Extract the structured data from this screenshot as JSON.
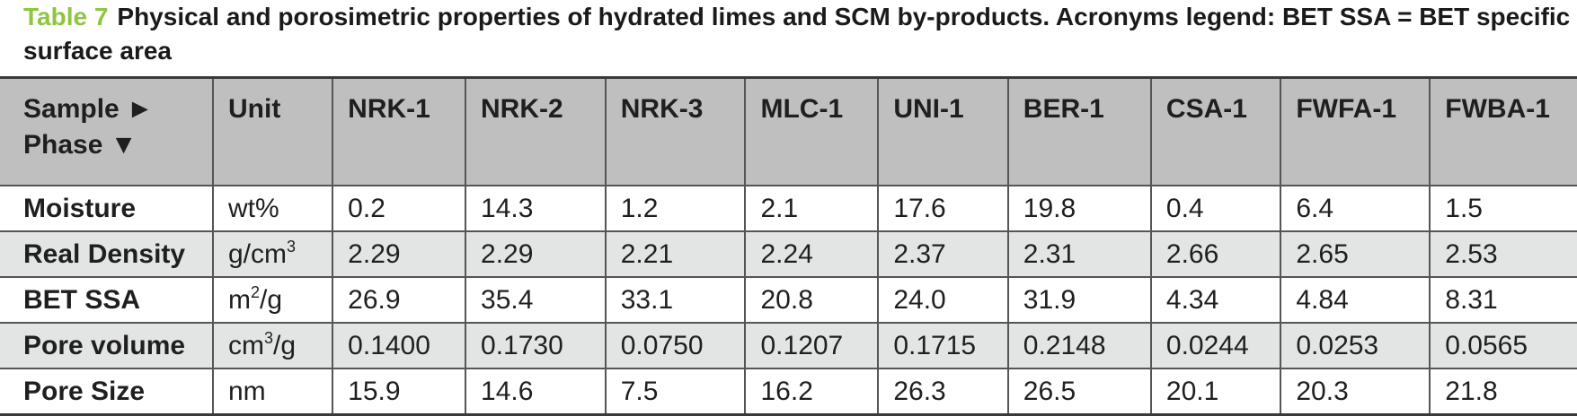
{
  "caption": {
    "label": "Table 7",
    "text": "Physical and porosimetric properties of hydrated limes and SCM by-products. Acronyms legend: BET SSA = BET specific surface area"
  },
  "table": {
    "header": {
      "sample_line": "Sample ►",
      "phase_line": "Phase ▼",
      "unit": "Unit",
      "samples": [
        "NRK-1",
        "NRK-2",
        "NRK-3",
        "MLC-1",
        "UNI-1",
        "BER-1",
        "CSA-1",
        "FWFA-1",
        "FWBA-1"
      ]
    },
    "rows": [
      {
        "phase": "Moisture",
        "unit_base": "wt%",
        "unit_sup": "",
        "unit_tail": "",
        "values": [
          "0.2",
          "14.3",
          "1.2",
          "2.1",
          "17.6",
          "19.8",
          "0.4",
          "6.4",
          "1.5"
        ]
      },
      {
        "phase": "Real Density",
        "unit_base": "g/cm",
        "unit_sup": "3",
        "unit_tail": "",
        "values": [
          "2.29",
          "2.29",
          "2.21",
          "2.24",
          "2.37",
          "2.31",
          "2.66",
          "2.65",
          "2.53"
        ]
      },
      {
        "phase": "BET SSA",
        "unit_base": "m",
        "unit_sup": "2",
        "unit_tail": "/g",
        "values": [
          "26.9",
          "35.4",
          "33.1",
          "20.8",
          "24.0",
          "31.9",
          "4.34",
          "4.84",
          "8.31"
        ]
      },
      {
        "phase": "Pore volume",
        "unit_base": "cm",
        "unit_sup": "3",
        "unit_tail": "/g",
        "values": [
          "0.1400",
          "0.1730",
          "0.0750",
          "0.1207",
          "0.1715",
          "0.2148",
          "0.0244",
          "0.0253",
          "0.0565"
        ]
      },
      {
        "phase": "Pore Size",
        "unit_base": "nm",
        "unit_sup": "",
        "unit_tail": "",
        "values": [
          "15.9",
          "14.6",
          "7.5",
          "16.2",
          "26.3",
          "26.5",
          "20.1",
          "20.3",
          "21.8"
        ]
      }
    ]
  }
}
